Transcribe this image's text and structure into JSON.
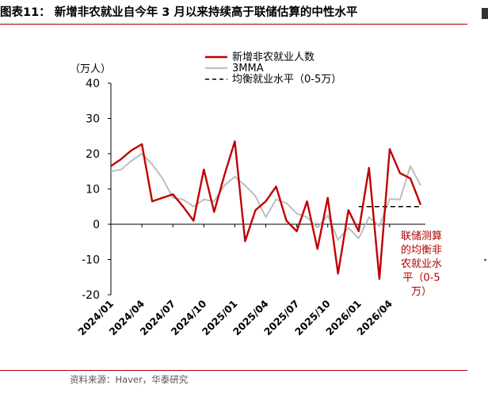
{
  "header": {
    "title": "图表11：  新增非农就业自今年 3 月以来持续高于联储估算的中性水平"
  },
  "footer": {
    "source": "资料来源：Haver，华泰研究"
  },
  "colors": {
    "payrolls": "#c00000",
    "mma": "#bdbdbd",
    "neutral": "#000000",
    "annotation": "#b00000",
    "rule": "#a00000"
  },
  "chart_data": {
    "type": "line",
    "unit_label": "（万人）",
    "ylim": [
      -20,
      40
    ],
    "yticks": [
      40,
      30,
      20,
      10,
      0,
      -10,
      -20
    ],
    "xtick_labels": [
      "2024/01",
      "2024/04",
      "2024/07",
      "2024/10",
      "2025/01",
      "2025/04",
      "2025/07",
      "2025/10",
      "2026/01",
      "2026/04"
    ],
    "xtick_index": [
      0,
      3,
      6,
      9,
      12,
      15,
      18,
      21,
      24,
      27
    ],
    "series": [
      {
        "name": "新增非农就业人数",
        "style": "solid",
        "values": [
          16.5,
          18.5,
          21,
          22.7,
          6.5,
          7.5,
          8.5,
          5,
          1,
          15.5,
          3.5,
          14,
          23.5,
          -4.8,
          4,
          6.5,
          10.7,
          1,
          -2,
          6.5,
          -7,
          7.5,
          -14,
          4,
          -2,
          16,
          -15.5,
          21.3,
          14.5,
          13,
          5.5
        ]
      },
      {
        "name": "3MMA",
        "style": "solid",
        "values": [
          15,
          15.5,
          18,
          20,
          17,
          13,
          7.5,
          7,
          5,
          7,
          6.5,
          11,
          13.5,
          11,
          8,
          2,
          7,
          6,
          3,
          2,
          -1,
          2.5,
          -4.5,
          -1,
          -4,
          2,
          -0.5,
          7.2,
          7,
          16.5,
          11
        ]
      },
      {
        "name": "均衡就业水平（0-5万）",
        "style": "dashed",
        "x_range": [
          24,
          30
        ],
        "value": 5
      }
    ],
    "annotation": [
      "联储测算",
      "的均衡非",
      "农就业水",
      "平（0-5",
      "万）"
    ],
    "grid": false,
    "legend_position": "top-center"
  }
}
